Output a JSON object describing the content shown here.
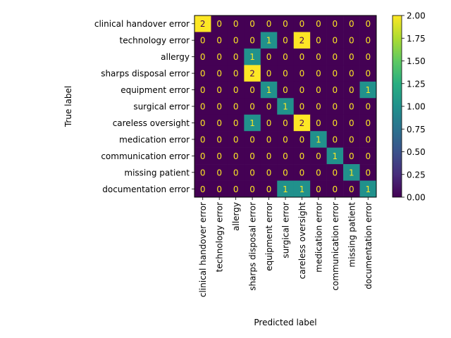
{
  "chart_data": {
    "type": "heatmap",
    "title": "",
    "xlabel": "Predicted label",
    "ylabel": "True label",
    "categories": [
      "clinical handover error",
      "technology error",
      "allergy",
      "sharps disposal error",
      "equipment error",
      "surgical error",
      "careless oversight",
      "medication error",
      "communication error",
      "missing patient",
      "documentation error"
    ],
    "matrix": [
      [
        2,
        0,
        0,
        0,
        0,
        0,
        0,
        0,
        0,
        0,
        0
      ],
      [
        0,
        0,
        0,
        0,
        1,
        0,
        2,
        0,
        0,
        0,
        0
      ],
      [
        0,
        0,
        0,
        1,
        0,
        0,
        0,
        0,
        0,
        0,
        0
      ],
      [
        0,
        0,
        0,
        2,
        0,
        0,
        0,
        0,
        0,
        0,
        0
      ],
      [
        0,
        0,
        0,
        0,
        1,
        0,
        0,
        0,
        0,
        0,
        1
      ],
      [
        0,
        0,
        0,
        0,
        0,
        1,
        0,
        0,
        0,
        0,
        0
      ],
      [
        0,
        0,
        0,
        1,
        0,
        0,
        2,
        0,
        0,
        0,
        0
      ],
      [
        0,
        0,
        0,
        0,
        0,
        0,
        0,
        1,
        0,
        0,
        0
      ],
      [
        0,
        0,
        0,
        0,
        0,
        0,
        0,
        0,
        1,
        0,
        0
      ],
      [
        0,
        0,
        0,
        0,
        0,
        0,
        0,
        0,
        0,
        1,
        0
      ],
      [
        0,
        0,
        0,
        0,
        0,
        1,
        1,
        0,
        0,
        0,
        1
      ]
    ],
    "colormap": "viridis",
    "vmin": 0,
    "vmax": 2,
    "colorbar_ticks": [
      "0.00",
      "0.25",
      "0.50",
      "0.75",
      "1.00",
      "1.25",
      "1.50",
      "1.75",
      "2.00"
    ],
    "colors": {
      "low": "#440154",
      "mid": "#21918c",
      "high": "#fde725",
      "low_text": "#fde725",
      "high_text": "#440154"
    }
  }
}
